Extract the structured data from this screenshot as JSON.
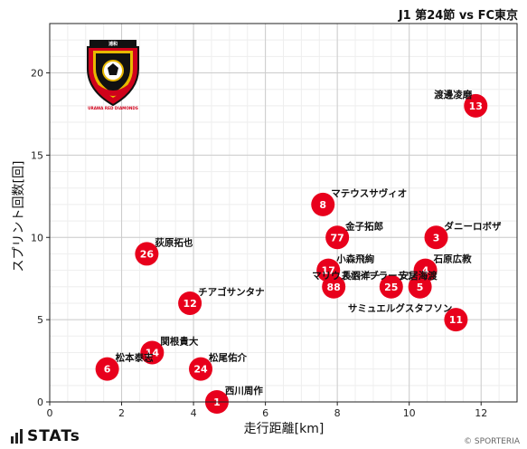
{
  "header": {
    "match_title": "J1 第24節 vs FC東京"
  },
  "footer": {
    "brand": "STATs",
    "copyright": "© SPORTERIA"
  },
  "club_logo": {
    "name": "URAWA RED DIAMONDS",
    "top_text": "浦和",
    "colors": {
      "red": "#d0021b",
      "black": "#111111",
      "gold": "#e8b800",
      "white": "#ffffff"
    }
  },
  "chart_data": {
    "type": "scatter",
    "xlabel": "走行距離[km]",
    "ylabel": "スプリント回数[回]",
    "xlim": [
      0,
      13
    ],
    "ylim": [
      0,
      23
    ],
    "xticks": [
      0,
      2,
      4,
      6,
      8,
      10,
      12
    ],
    "yticks": [
      0,
      5,
      10,
      15,
      20
    ],
    "grid": true,
    "marker_color": "#e8001c",
    "points": [
      {
        "number": "13",
        "name": "渡邊凌磨",
        "x": 11.85,
        "y": 18
      },
      {
        "number": "8",
        "name": "マテウスサヴィオ",
        "x": 7.6,
        "y": 12
      },
      {
        "number": "77",
        "name": "金子拓郎",
        "x": 8.0,
        "y": 10
      },
      {
        "number": "3",
        "name": "ダニーロボザ",
        "x": 10.75,
        "y": 10
      },
      {
        "number": "26",
        "name": "荻原拓也",
        "x": 2.7,
        "y": 9
      },
      {
        "number": "17",
        "name": "小森飛絢",
        "x": 7.75,
        "y": 8
      },
      {
        "number": "4",
        "name": "石原広教",
        "x": 10.45,
        "y": 8
      },
      {
        "number": "88",
        "name": "長沼洋一",
        "x": 7.9,
        "y": 7
      },
      {
        "number": "25",
        "name": "安居海渡",
        "x": 9.5,
        "y": 7
      },
      {
        "number": "5",
        "name": "マリウスホイブラーテン",
        "x": 10.3,
        "y": 7
      },
      {
        "number": "12",
        "name": "チアゴサンタナ",
        "x": 3.9,
        "y": 6
      },
      {
        "number": "11",
        "name": "サミュエルグスタフソン",
        "x": 11.3,
        "y": 5
      },
      {
        "number": "14",
        "name": "関根貴大",
        "x": 2.85,
        "y": 3
      },
      {
        "number": "6",
        "name": "松本泰志",
        "x": 1.6,
        "y": 2
      },
      {
        "number": "24",
        "name": "松尾佑介",
        "x": 4.2,
        "y": 2
      },
      {
        "number": "1",
        "name": "西川周作",
        "x": 4.65,
        "y": 0
      }
    ]
  }
}
